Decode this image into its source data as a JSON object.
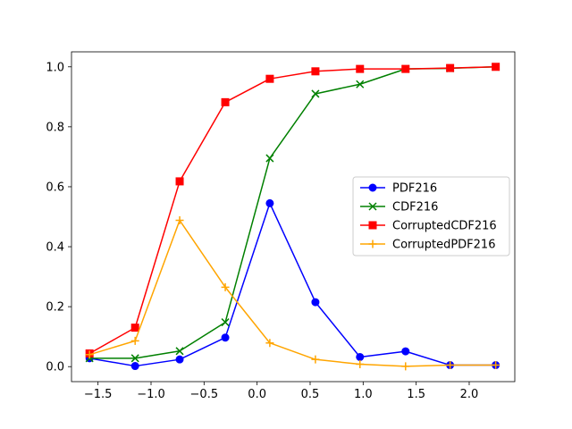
{
  "chart_data": {
    "type": "line",
    "title": "",
    "xlabel": "",
    "ylabel": "",
    "xlim": [
      -1.75,
      2.43
    ],
    "ylim": [
      -0.05,
      1.05
    ],
    "xticks": [
      -1.5,
      -1.0,
      -0.5,
      0.0,
      0.5,
      1.0,
      1.5,
      2.0
    ],
    "xtick_labels": [
      "−1.5",
      "−1.0",
      "−0.5",
      "0.0",
      "0.5",
      "1.0",
      "1.5",
      "2.0"
    ],
    "yticks": [
      0.0,
      0.2,
      0.4,
      0.6,
      0.8,
      1.0
    ],
    "ytick_labels": [
      "0.0",
      "0.2",
      "0.4",
      "0.6",
      "0.8",
      "1.0"
    ],
    "grid": false,
    "legend_position": "center-right",
    "x": [
      -1.58,
      -1.15,
      -0.73,
      -0.3,
      0.12,
      0.55,
      0.97,
      1.4,
      1.82,
      2.25
    ],
    "series": [
      {
        "name": "PDF216",
        "color": "#0000ff",
        "marker": "circle",
        "values": [
          0.028,
          0.002,
          0.024,
          0.097,
          0.545,
          0.215,
          0.032,
          0.051,
          0.005,
          0.005
        ]
      },
      {
        "name": "CDF216",
        "color": "#008000",
        "marker": "x",
        "values": [
          0.028,
          0.028,
          0.052,
          0.148,
          0.695,
          0.91,
          0.942,
          0.993,
          0.995,
          1.0
        ]
      },
      {
        "name": "CorruptedCDF216",
        "color": "#ff0000",
        "marker": "square",
        "values": [
          0.044,
          0.13,
          0.618,
          0.882,
          0.96,
          0.985,
          0.993,
          0.993,
          0.996,
          1.0
        ]
      },
      {
        "name": "CorruptedPDF216",
        "color": "#ffa500",
        "marker": "plus",
        "values": [
          0.04,
          0.086,
          0.488,
          0.265,
          0.079,
          0.024,
          0.008,
          0.001,
          0.005,
          0.005
        ]
      }
    ]
  }
}
